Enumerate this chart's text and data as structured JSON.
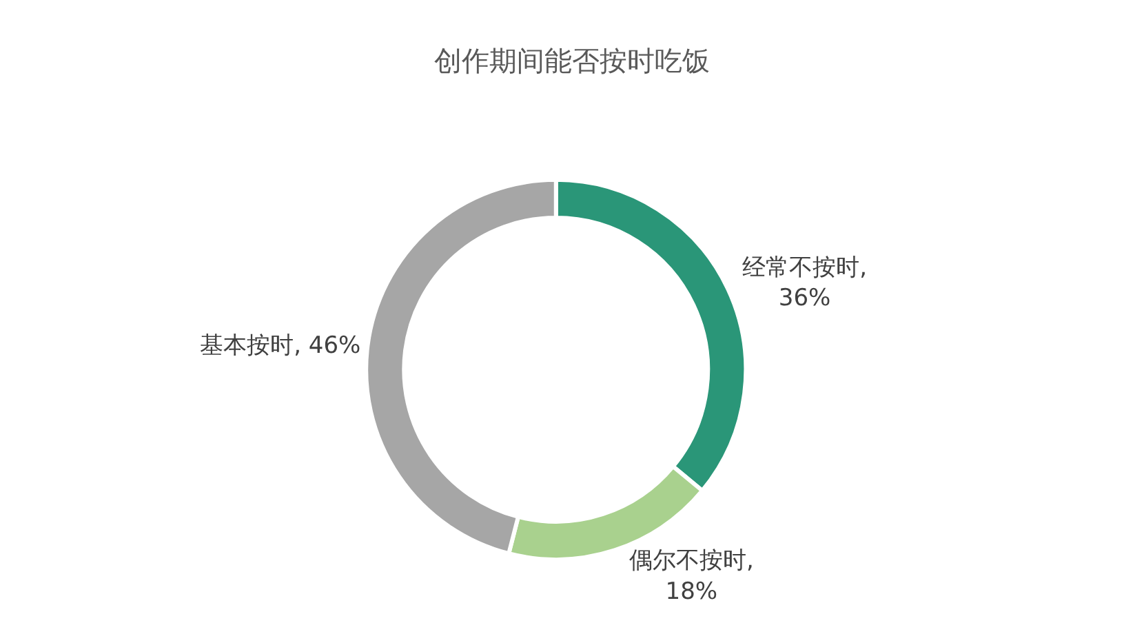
{
  "chart_data": {
    "type": "donut",
    "title": "创作期间能否按时吃饭",
    "categories": [
      "经常不按时",
      "偶尔不按时",
      "基本按时"
    ],
    "values": [
      36,
      18,
      46
    ],
    "colors": [
      "#2a9678",
      "#a9d18e",
      "#a6a6a6"
    ],
    "value_labels": [
      ", 36%",
      ", 18%",
      ", 46%"
    ],
    "legend": false
  }
}
